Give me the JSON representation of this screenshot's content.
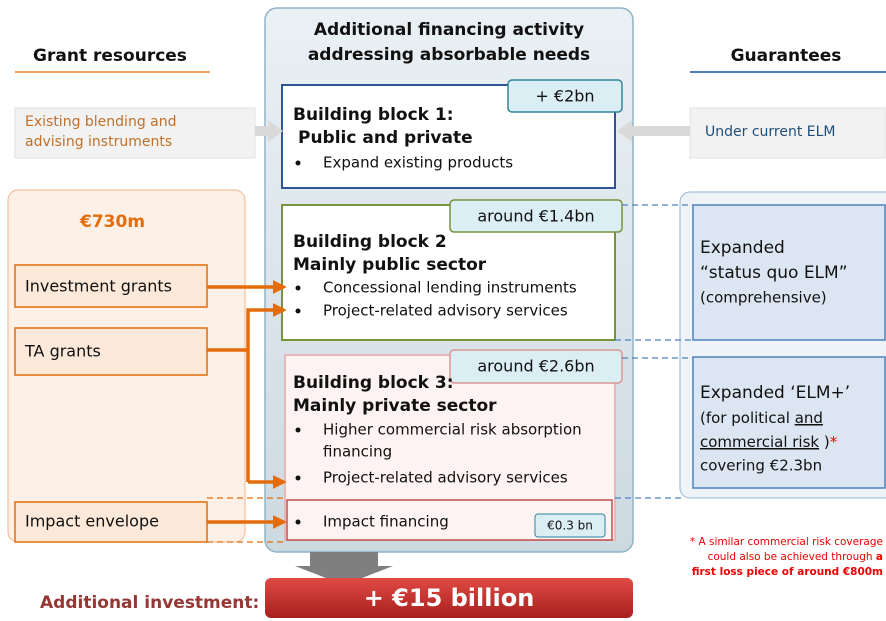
{
  "grant_resources": {
    "title": "Grant resources",
    "existing": [
      "Existing blending and",
      "advising instruments"
    ],
    "amount": "€730m",
    "items": [
      "Investment grants",
      "TA grants",
      "Impact envelope"
    ]
  },
  "center": {
    "title": [
      "Additional financing activity",
      "addressing absorbable needs"
    ],
    "blocks": [
      {
        "title": [
          "Building block 1:",
          "Public and private"
        ],
        "amount": "+ €2bn",
        "bullets": [
          "Expand existing products"
        ]
      },
      {
        "title": [
          "Building block 2",
          "Mainly public sector"
        ],
        "amount": "around €1.4bn",
        "bullets": [
          "Concessional  lending  instruments",
          "Project-related advisory services"
        ]
      },
      {
        "title": [
          "Building block 3:",
          "Mainly private sector"
        ],
        "amount": "around €2.6bn",
        "bullets": [
          "Higher commercial risk absorption",
          "financing",
          "Project-related advisory services"
        ],
        "impact": {
          "text": "Impact financing",
          "amount": "€0.3 bn"
        }
      }
    ]
  },
  "guarantees": {
    "title": "Guarantees",
    "current": "Under current ELM",
    "box1": [
      "Expanded",
      "“status quo ELM”",
      "(comprehensive)"
    ],
    "box2": {
      "line1": "Expanded ‘ELM+’",
      "line2a": "(for political ",
      "line2b": "and",
      "line3a": "commercial risk",
      "line3b": " )",
      "star": "*",
      "line4": "covering €2.3bn"
    }
  },
  "footnote": {
    "line1": "* A similar commercial risk coverage",
    "line2a": "could also be achieved through ",
    "line2b": "a",
    "line3": "first loss piece of around €800m"
  },
  "bottom": {
    "label": "Additional investment:",
    "total": "+ €15 billion"
  }
}
